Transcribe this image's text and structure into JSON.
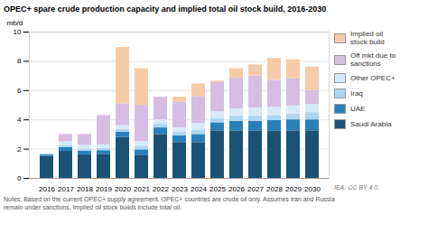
{
  "chart_data": {
    "type": "bar",
    "stacked": true,
    "title": "OPEC+ spare crude production capacity and implied total oil stock build, 2016-2030",
    "ylabel": "mb/d",
    "categories": [
      "2016",
      "2017",
      "2018",
      "2019",
      "2020",
      "2021",
      "2022",
      "2023",
      "2024",
      "2025",
      "2026",
      "2027",
      "2028",
      "2029",
      "2030"
    ],
    "series": [
      {
        "name": "Saudi Arabia",
        "color": "#1a5276",
        "values": [
          1.5,
          1.85,
          1.6,
          1.65,
          2.8,
          1.55,
          3.0,
          2.45,
          2.45,
          3.25,
          3.25,
          3.25,
          3.25,
          3.25,
          3.25
        ]
      },
      {
        "name": "UAE",
        "color": "#2980b9",
        "values": [
          0.1,
          0.25,
          0.25,
          0.25,
          0.35,
          0.4,
          0.45,
          0.45,
          0.55,
          0.55,
          0.65,
          0.65,
          0.7,
          0.75,
          0.75
        ]
      },
      {
        "name": "Iraq",
        "color": "#aed6f1",
        "values": [
          0.05,
          0.15,
          0.15,
          0.15,
          0.2,
          0.25,
          0.25,
          0.25,
          0.3,
          0.3,
          0.35,
          0.35,
          0.35,
          0.4,
          0.5
        ]
      },
      {
        "name": "Other OPEC+",
        "color": "#d6eaf8",
        "values": [
          0.05,
          0.25,
          0.25,
          0.25,
          0.25,
          0.3,
          0.3,
          0.3,
          0.45,
          0.45,
          0.5,
          0.55,
          0.55,
          0.55,
          0.55
        ]
      },
      {
        "name": "Off mkt due to\nsanctions",
        "color": "#d7bde2",
        "values": [
          0.0,
          0.5,
          0.75,
          2.0,
          1.5,
          2.5,
          1.55,
          1.75,
          1.85,
          2.0,
          2.1,
          2.2,
          1.85,
          1.85,
          0.95
        ]
      },
      {
        "name": "Implied oil\nstock build",
        "color": "#f5cba7",
        "values": [
          0.0,
          0.0,
          0.0,
          0.0,
          3.85,
          2.5,
          0.0,
          0.35,
          0.85,
          0.1,
          0.65,
          0.75,
          1.5,
          1.3,
          1.6
        ]
      }
    ],
    "ylim": [
      0,
      10
    ],
    "yticks": [
      0,
      2,
      4,
      6,
      8,
      10
    ],
    "grid": true,
    "legend": "right",
    "annotations": [
      "Notes: Based on the current OPEC+ supply agreement. OPEC+ countries are crude oil only. Assumes Iran and Russia\nremain under sanctions. Implied oil stock builds include total oil.",
      "IEA. CC BY 4.0."
    ]
  }
}
